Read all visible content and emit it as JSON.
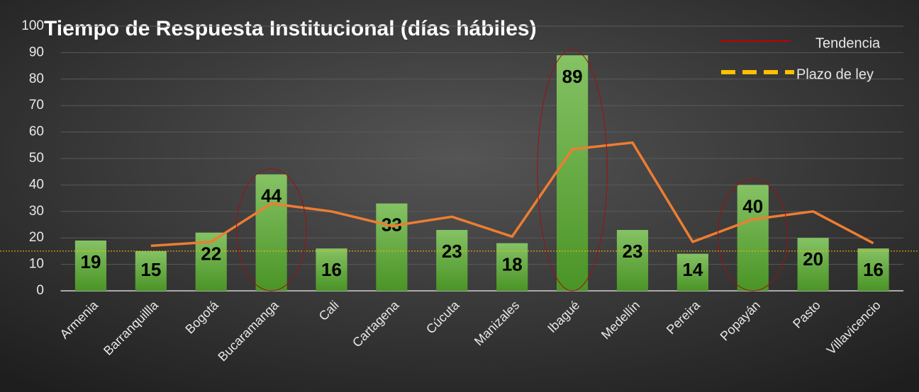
{
  "chart_data": {
    "type": "bar",
    "title": "Tiempo de Respuesta Institucional (días hábiles)",
    "categories": [
      "Armenia",
      "Barranquillla",
      "Bogotá",
      "Bucaramanga",
      "Cali",
      "Cartagena",
      "Cúcuta",
      "Manizales",
      "Ibagué",
      "Medellín",
      "Pereira",
      "Popayán",
      "Pasto",
      "Villavicencio"
    ],
    "values": [
      19,
      15,
      22,
      44,
      16,
      33,
      23,
      18,
      89,
      23,
      14,
      40,
      20,
      16
    ],
    "color": "#5fa83a",
    "trend": {
      "name": "Tendencia",
      "color": "#ed7d31",
      "legend_color": "#c00000",
      "values": [
        null,
        17,
        18.5,
        33,
        30,
        24.5,
        28,
        20.5,
        53.5,
        56,
        18.5,
        27,
        30,
        18
      ]
    },
    "reference_line": {
      "name": "Plazo de ley",
      "value": 15,
      "color": "#ffc000"
    },
    "highlighted": [
      3,
      8,
      11
    ],
    "ylim": [
      0,
      100
    ],
    "yticks": [
      0,
      10,
      20,
      30,
      40,
      50,
      60,
      70,
      80,
      90,
      100
    ],
    "grid": true
  }
}
